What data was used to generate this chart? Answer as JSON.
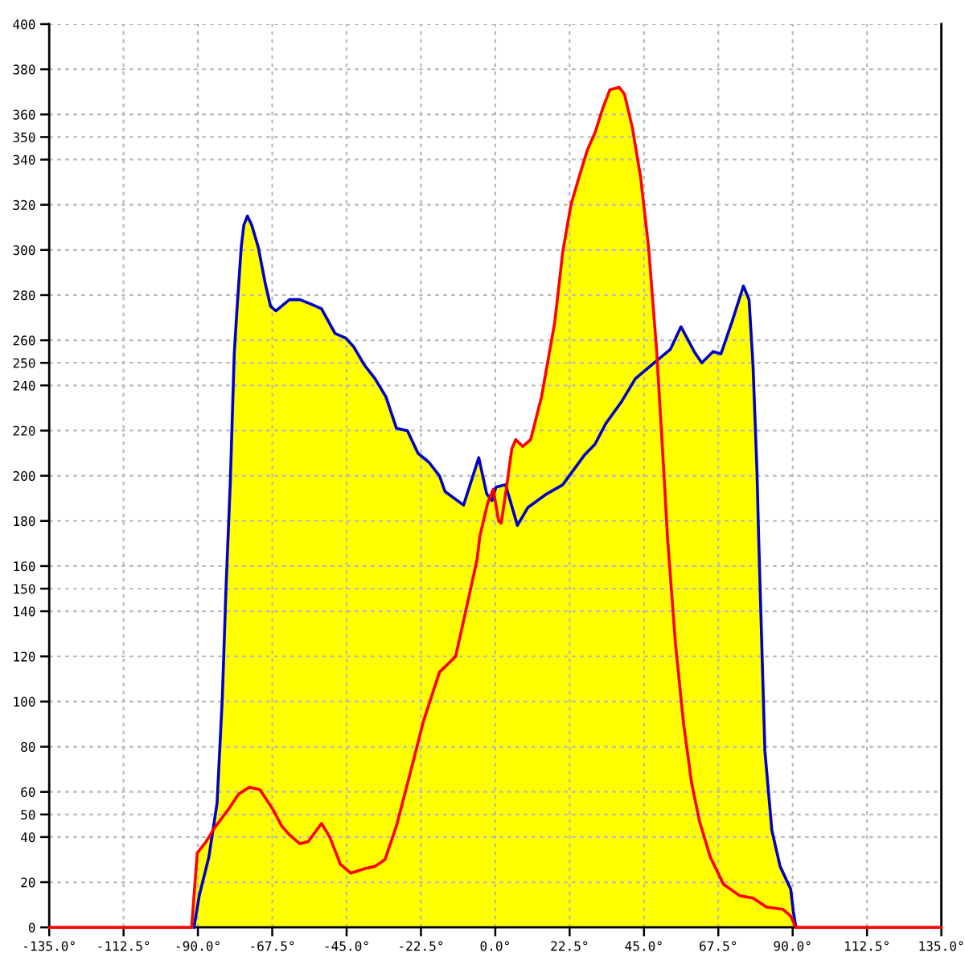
{
  "chart_data": {
    "type": "area",
    "xlim": [
      -135,
      135
    ],
    "xticks": [
      {
        "value": -135,
        "label": "-135.0°"
      },
      {
        "value": -112.5,
        "label": "-112.5°"
      },
      {
        "value": -90,
        "label": "-90.0°"
      },
      {
        "value": -67.5,
        "label": "-67.5°"
      },
      {
        "value": -45,
        "label": "-45.0°"
      },
      {
        "value": -22.5,
        "label": "-22.5°"
      },
      {
        "value": 0,
        "label": "0.0°"
      },
      {
        "value": 22.5,
        "label": "22.5°"
      },
      {
        "value": 45,
        "label": "45.0°"
      },
      {
        "value": 67.5,
        "label": "67.5°"
      },
      {
        "value": 90,
        "label": "90.0°"
      },
      {
        "value": 112.5,
        "label": "112.5°"
      },
      {
        "value": 135,
        "label": "135.0°"
      }
    ],
    "ylim": [
      0,
      400
    ],
    "yticks": [
      0,
      20,
      40,
      50,
      60,
      80,
      100,
      120,
      140,
      150,
      160,
      180,
      200,
      220,
      240,
      250,
      260,
      280,
      300,
      320,
      340,
      350,
      360,
      380,
      400
    ],
    "grid": true,
    "series": [
      {
        "color": "#ffff00",
        "x": [
          -91.9,
          -90.2,
          -87.5,
          -85.5,
          -84.2,
          -82.6,
          -81.5,
          -80.2,
          -79.0,
          -78.2,
          -76.9,
          -76.1,
          -75.0,
          -73.7,
          -71.7,
          -69.6,
          -68.0,
          -66.4,
          -62.3,
          -59.1,
          -55.8,
          -52.6,
          -48.5,
          -45.3,
          -42.8,
          -39.6,
          -36.4,
          -33.1,
          -29.9,
          -26.6,
          -23.4,
          -20.1,
          -16.9,
          -15.2,
          -9.6,
          -5.0,
          -2.6,
          -1.4,
          -0.6,
          -0.4,
          0.2,
          3.1,
          3.4,
          5.0,
          6.2,
          8.3,
          10.7,
          14.0,
          18.0,
          20.4,
          22.9,
          25.3,
          27.8,
          30.2,
          32.6,
          34.7,
          37.5,
          39.1,
          41.5,
          44.0,
          46.4,
          48.8,
          49.0,
          53.0,
          56.2,
          60.2,
          62.5,
          65.9,
          68.3,
          71.6,
          75.1,
          76.8,
          78.0,
          79.2,
          79.7,
          80.5,
          81.6,
          83.7,
          86.2,
          89.4,
          90.2,
          91.0
        ],
        "values": [
          0,
          33,
          38,
          43,
          55,
          102,
          150,
          197,
          254,
          273,
          301,
          311,
          315,
          311,
          301,
          285,
          275,
          273,
          278,
          278,
          276,
          274,
          263,
          261,
          257,
          249,
          243,
          235,
          221,
          220,
          210,
          206,
          200,
          193,
          187,
          208,
          192,
          190,
          194,
          192,
          195,
          196,
          195,
          212,
          216,
          213,
          216,
          235,
          268,
          299,
          320,
          332,
          344,
          352,
          363,
          371,
          372,
          369,
          354,
          332,
          301,
          256,
          251,
          256,
          266,
          255,
          250,
          255,
          254,
          268,
          284,
          278,
          249,
          202,
          173,
          133,
          78,
          43,
          27,
          17,
          7,
          0
        ]
      },
      {
        "type": "line",
        "color": "#0000c8",
        "x": [
          -91.2,
          -89.6,
          -86.7,
          -84.2,
          -82.6,
          -81.5,
          -80.2,
          -79.0,
          -78.2,
          -76.9,
          -76.1,
          -75.0,
          -73.7,
          -71.7,
          -69.6,
          -68.0,
          -66.4,
          -62.3,
          -59.1,
          -55.8,
          -52.6,
          -48.5,
          -45.3,
          -42.8,
          -39.6,
          -36.4,
          -33.1,
          -29.9,
          -26.6,
          -23.4,
          -20.1,
          -16.9,
          -15.2,
          -9.6,
          -5.0,
          -2.6,
          -1.0,
          0.2,
          3.1,
          6.7,
          9.9,
          15.6,
          20.4,
          26.9,
          30.2,
          33.4,
          38.3,
          42.4,
          48.1,
          53.0,
          56.2,
          60.2,
          62.5,
          65.9,
          68.3,
          71.6,
          75.1,
          76.8,
          78.0,
          79.2,
          79.7,
          80.5,
          81.6,
          83.7,
          86.2,
          89.4,
          90.2,
          91.0
        ],
        "values": [
          0,
          14,
          31,
          55,
          102,
          150,
          197,
          254,
          273,
          301,
          311,
          315,
          311,
          301,
          285,
          275,
          273,
          278,
          278,
          276,
          274,
          263,
          261,
          257,
          249,
          243,
          235,
          221,
          220,
          210,
          206,
          200,
          193,
          187,
          208,
          192,
          189,
          195,
          196,
          178,
          186,
          192,
          196,
          209,
          214,
          223,
          233,
          243,
          250,
          256,
          266,
          255,
          250,
          255,
          254,
          268,
          284,
          278,
          249,
          202,
          173,
          133,
          78,
          43,
          27,
          17,
          7,
          0
        ]
      },
      {
        "type": "line",
        "color": "#ff0000",
        "x": [
          -135,
          -91.9,
          -90.2,
          -87.5,
          -85.0,
          -80.9,
          -77.7,
          -74.5,
          -71.2,
          -67.2,
          -64.7,
          -62.3,
          -59.1,
          -56.6,
          -52.6,
          -50.1,
          -46.9,
          -43.7,
          -39.6,
          -36.4,
          -33.4,
          -29.9,
          -25.8,
          -21.8,
          -16.9,
          -12.0,
          -7.9,
          -5.5,
          -4.7,
          -2.3,
          -0.6,
          1.0,
          1.8,
          3.4,
          5.0,
          6.2,
          8.3,
          10.7,
          14.0,
          18.0,
          20.4,
          22.9,
          25.3,
          27.8,
          30.2,
          32.6,
          34.7,
          37.5,
          39.1,
          41.5,
          44.0,
          46.4,
          48.8,
          51.0,
          52.1,
          54.5,
          57.0,
          59.4,
          61.8,
          65.1,
          69.1,
          74.0,
          78.0,
          82.1,
          87.0,
          89.4,
          91.0,
          135
        ],
        "values": [
          0,
          0,
          33,
          38,
          44,
          52,
          59,
          62,
          61,
          52,
          45,
          41,
          37,
          38,
          46,
          40,
          28,
          24,
          26,
          27,
          30,
          45,
          68,
          91,
          113,
          120,
          147,
          163,
          173,
          188,
          194,
          180,
          179,
          195,
          212,
          216,
          213,
          216,
          235,
          268,
          299,
          320,
          332,
          344,
          352,
          363,
          371,
          372,
          369,
          354,
          332,
          301,
          256,
          202,
          173,
          126,
          90,
          64,
          47,
          31,
          19,
          14,
          13,
          9,
          8,
          5,
          0,
          0
        ]
      }
    ]
  }
}
